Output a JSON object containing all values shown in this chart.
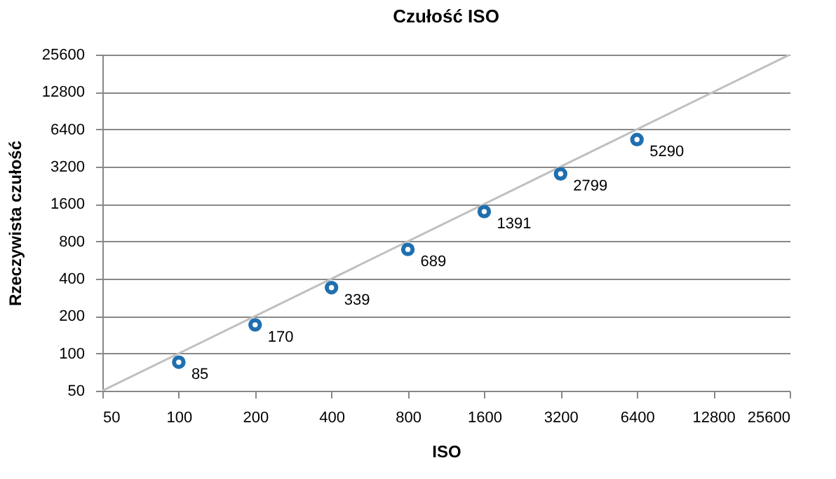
{
  "chart_data": {
    "type": "scatter",
    "title": "Czułość ISO",
    "xlabel": "ISO",
    "ylabel": "Rzeczywista czułość",
    "x": [
      100,
      200,
      400,
      800,
      1600,
      3200,
      6400
    ],
    "series": [
      {
        "color": "#1f6fb0",
        "values": [
          85,
          170,
          339,
          689,
          1391,
          2799,
          5290
        ],
        "marker": "circle",
        "data_labels": true
      },
      {
        "type": "line",
        "color": "#c0c0c0",
        "x": [
          50,
          25600
        ],
        "values": [
          50,
          25600
        ],
        "marker": "none",
        "line_style": "solid"
      }
    ],
    "log": "xy",
    "xlim": [
      50,
      25600
    ],
    "ylim": [
      50,
      25600
    ],
    "xticks": [
      50,
      100,
      200,
      400,
      800,
      1600,
      3200,
      6400,
      12800,
      25600
    ],
    "yticks": [
      50,
      100,
      200,
      400,
      800,
      1600,
      3200,
      6400,
      12800,
      25600
    ],
    "grid": "y"
  }
}
